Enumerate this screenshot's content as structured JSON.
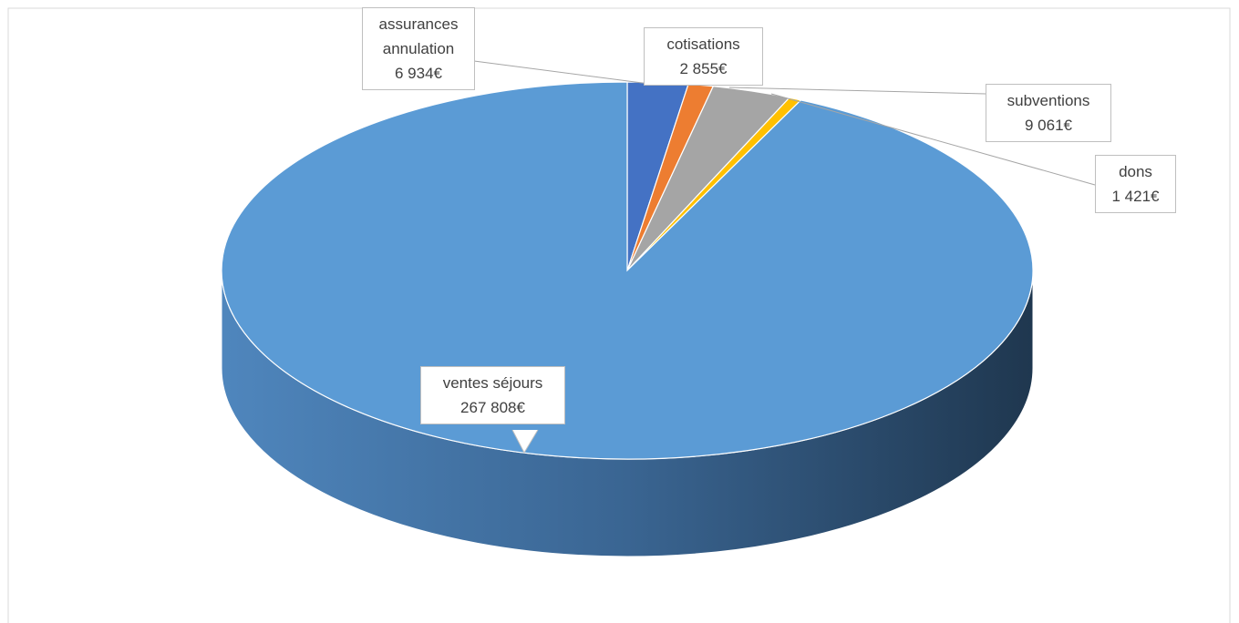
{
  "chart_data": {
    "type": "pie",
    "categories": [
      "assurances annulation",
      "cotisations",
      "subventions",
      "dons",
      "ventes séjours"
    ],
    "values": [
      6934,
      2855,
      9061,
      1421,
      267808
    ],
    "value_labels": [
      "6 934€",
      "2 855€",
      "9 061€",
      "1 421€",
      "267 808€"
    ],
    "colors": [
      "#4472c4",
      "#ed7d31",
      "#a5a5a5",
      "#ffc000",
      "#5b9bd5"
    ],
    "three_d": true
  }
}
